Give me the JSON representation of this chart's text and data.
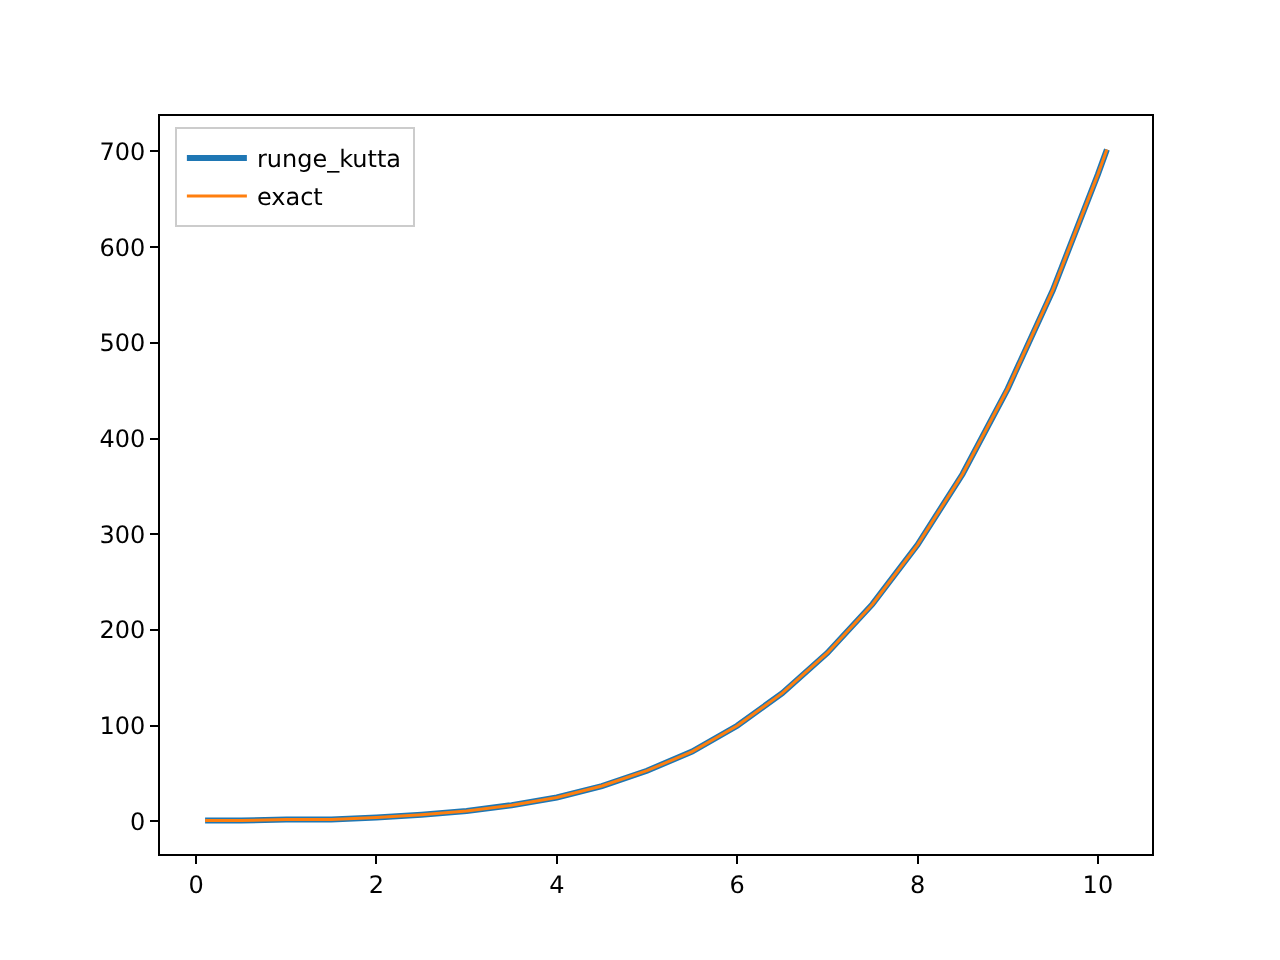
{
  "chart_data": {
    "type": "line",
    "x": [
      0.1,
      0.5,
      1,
      1.5,
      2,
      2.5,
      3,
      3.5,
      4,
      4.5,
      5,
      5.5,
      6,
      6.5,
      7,
      7.5,
      8,
      8.5,
      9,
      9.5,
      10,
      10.1
    ],
    "series": [
      {
        "name": "runge_kutta",
        "color": "#1f77b4",
        "values": [
          1,
          1,
          2,
          2,
          4,
          7,
          11,
          17,
          25,
          37,
          53,
          73,
          100,
          134,
          176,
          227,
          289,
          363,
          452,
          555,
          676,
          702
        ]
      },
      {
        "name": "exact",
        "color": "#ff7f0e",
        "values": [
          1,
          1,
          2,
          2,
          4,
          7,
          11,
          17,
          25,
          37,
          53,
          73,
          100,
          134,
          176,
          227,
          289,
          363,
          452,
          555,
          676,
          702
        ]
      }
    ],
    "xlim": [
      -0.4,
      10.6
    ],
    "xticks": [
      0,
      2,
      4,
      6,
      8,
      10
    ],
    "ylim": [
      -34,
      737
    ],
    "yticks": [
      0,
      100,
      200,
      300,
      400,
      500,
      600,
      700
    ],
    "legend": "top left",
    "grid": false,
    "marker": "none",
    "line_style": "solid"
  }
}
